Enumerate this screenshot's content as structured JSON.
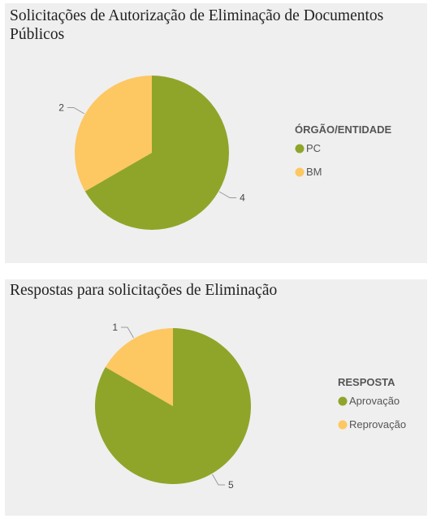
{
  "chart_data": [
    {
      "type": "pie",
      "title": "Solicitações de Autorização de Eliminação de Documentos Públicos",
      "legend_title": "ÓRGÃO/ENTIDADE",
      "legend_position": "right",
      "categories": [
        "PC",
        "BM"
      ],
      "values": [
        4,
        2
      ],
      "colors": [
        "#8fa52a",
        "#fdc762"
      ]
    },
    {
      "type": "pie",
      "title": "Respostas para solicitações de Eliminação",
      "legend_title": "RESPOSTA",
      "legend_position": "right",
      "categories": [
        "Aprovação",
        "Reprovação"
      ],
      "values": [
        5,
        1
      ],
      "colors": [
        "#8fa52a",
        "#fdc762"
      ]
    }
  ]
}
